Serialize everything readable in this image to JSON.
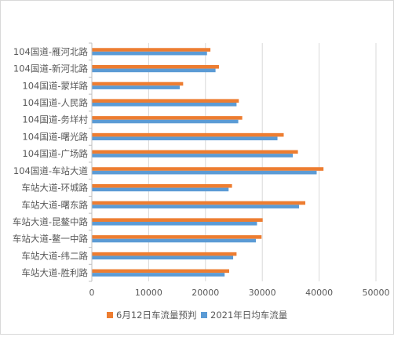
{
  "chart_data": {
    "type": "bar",
    "orientation": "horizontal",
    "categories": [
      "104国道-雁河北路",
      "104国道-新河北路",
      "104国道-蒙垟路",
      "104国道-人民路",
      "104国道-务垟村",
      "104国道-曙光路",
      "104国道-广场路",
      "104国道-车站大道",
      "车站大道-环城路",
      "车站大道-曙东路",
      "车站大道-昆鳌中路",
      "车站大道-鳌一中路",
      "车站大道-纬二路",
      "车站大道-胜利路"
    ],
    "series": [
      {
        "name": "6月12日车流量预判",
        "color": "#ED7D31",
        "values": [
          20800,
          22300,
          16000,
          25800,
          26400,
          33700,
          36200,
          40700,
          24600,
          37500,
          30000,
          29800,
          25400,
          24100
        ]
      },
      {
        "name": "2021年日均车流量",
        "color": "#5B9BD5",
        "values": [
          20200,
          21700,
          15400,
          25400,
          25700,
          32600,
          35300,
          39500,
          24000,
          36400,
          29000,
          28800,
          24800,
          23300
        ]
      }
    ],
    "xlim": [
      0,
      50000
    ],
    "xticks": [
      "0",
      "10000",
      "20000",
      "30000",
      "40000",
      "50000"
    ],
    "grid": true,
    "legend_position": "bottom"
  }
}
